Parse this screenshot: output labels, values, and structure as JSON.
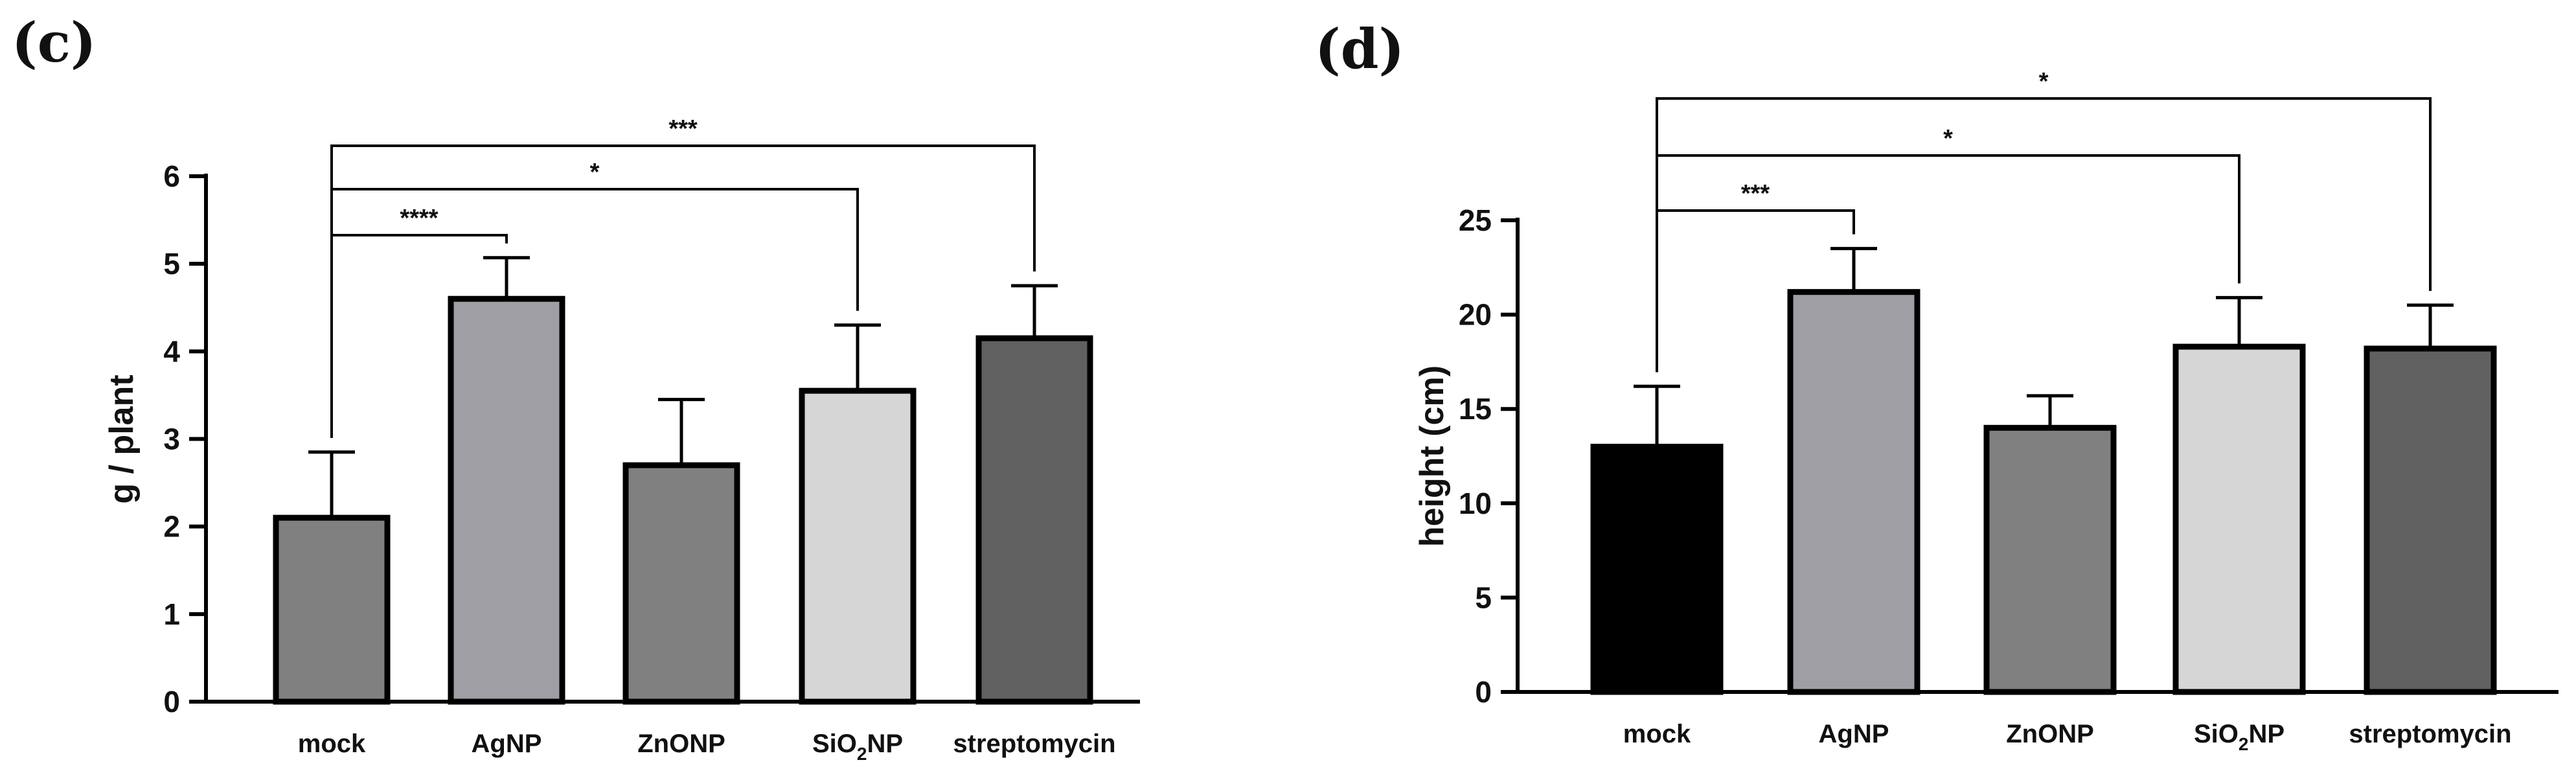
{
  "chart_data": [
    {
      "panel": "(c)",
      "type": "bar",
      "title": "",
      "xlabel": "",
      "ylabel": "g / plant",
      "ylim": [
        0,
        6
      ],
      "yticks": [
        0,
        1,
        2,
        3,
        4,
        5,
        6
      ],
      "categories": [
        {
          "label": "mock",
          "sub": ""
        },
        {
          "label": "AgNP",
          "sub": ""
        },
        {
          "label": "ZnONP",
          "sub": ""
        },
        {
          "label": "SiO",
          "sub": "2",
          "tail": "NP"
        },
        {
          "label": "streptomycin",
          "sub": ""
        }
      ],
      "values": [
        2.1,
        4.6,
        2.7,
        3.55,
        4.15
      ],
      "errors": [
        0.75,
        0.47,
        0.75,
        0.75,
        0.6
      ],
      "colors": [
        "#808080",
        "#9e9ea4",
        "#808080",
        "#d6d6d6",
        "#606060"
      ],
      "significance": [
        {
          "from": 0,
          "to": 1,
          "label": "****"
        },
        {
          "from": 0,
          "to": 3,
          "label": "*"
        },
        {
          "from": 0,
          "to": 4,
          "label": "***"
        }
      ]
    },
    {
      "panel": "(d)",
      "type": "bar",
      "title": "",
      "xlabel": "",
      "ylabel": "height (cm)",
      "ylim": [
        0,
        25
      ],
      "yticks": [
        0,
        5,
        10,
        15,
        20,
        25
      ],
      "categories": [
        {
          "label": "mock",
          "sub": ""
        },
        {
          "label": "AgNP",
          "sub": ""
        },
        {
          "label": "ZnONP",
          "sub": ""
        },
        {
          "label": "SiO",
          "sub": "2",
          "tail": "NP"
        },
        {
          "label": "streptomycin",
          "sub": ""
        }
      ],
      "values": [
        13,
        21.2,
        14,
        18.3,
        18.2
      ],
      "errors": [
        3.2,
        2.3,
        1.7,
        2.6,
        2.3
      ],
      "colors": [
        "#000000",
        "#9e9ea4",
        "#808080",
        "#d6d6d6",
        "#606060"
      ],
      "significance": [
        {
          "from": 0,
          "to": 1,
          "label": "***"
        },
        {
          "from": 0,
          "to": 3,
          "label": "*"
        },
        {
          "from": 0,
          "to": 4,
          "label": "*"
        }
      ]
    }
  ]
}
